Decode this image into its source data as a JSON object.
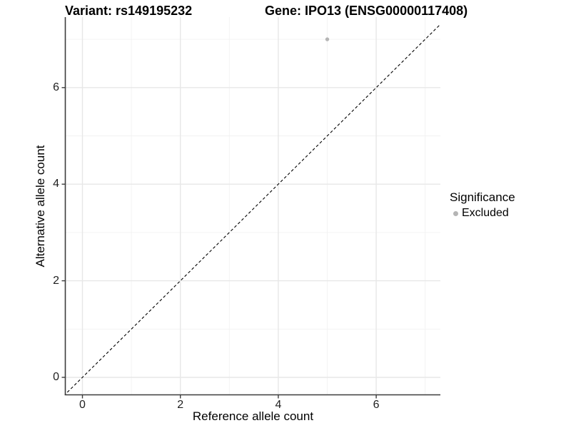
{
  "titles": {
    "variant": "Variant: rs149195232",
    "gene": "Gene: IPO13 (ENSG00000117408)"
  },
  "axes": {
    "x": {
      "label": "Reference allele count",
      "tick_labels": [
        "0",
        "2",
        "4",
        "6"
      ]
    },
    "y": {
      "label": "Alternative allele count",
      "tick_labels": [
        "0",
        "2",
        "4",
        "6"
      ]
    }
  },
  "legend": {
    "title": "Significance",
    "items": [
      {
        "label": "Excluded",
        "color": "#b5b5b5"
      }
    ]
  },
  "colors": {
    "point": "#b5b5b5",
    "grid_major": "#e7e7e7",
    "grid_minor": "#f2f2f2",
    "axis_line": "#3c3c3c",
    "tick_mark": "#3c3c3c",
    "reference_line": "#000000",
    "background": "#ffffff"
  },
  "chart_data": {
    "type": "scatter",
    "title": "Variant: rs149195232   Gene: IPO13 (ENSG00000117408)",
    "xlabel": "Reference allele count",
    "ylabel": "Alternative allele count",
    "xlim": [
      -0.35,
      7.3
    ],
    "ylim": [
      -0.35,
      7.45
    ],
    "x_ticks": [
      0,
      2,
      4,
      6
    ],
    "y_ticks": [
      0,
      2,
      4,
      6
    ],
    "x_grid_minor": [
      1,
      3,
      5,
      7
    ],
    "y_grid_minor": [
      1,
      3,
      5,
      7
    ],
    "grid": "major and minor, light gray on white",
    "legend_position": "right",
    "series": [
      {
        "name": "Excluded",
        "color": "#b5b5b5",
        "points": [
          {
            "x": 5,
            "y": 7
          }
        ]
      }
    ],
    "reference_line": {
      "kind": "identity y=x",
      "style": "dashed",
      "color": "#000000"
    }
  }
}
